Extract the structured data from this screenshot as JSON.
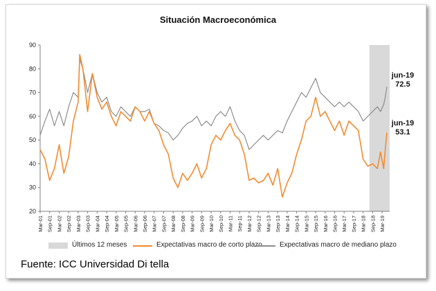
{
  "chart_data": {
    "type": "line",
    "title": "Situación Macroeconómica",
    "ylim": [
      20,
      90
    ],
    "yticks": [
      20,
      30,
      40,
      50,
      60,
      70,
      80,
      90
    ],
    "x_tick_labels": [
      "Mar-01",
      "Sep-01",
      "Mar-02",
      "Sep-02",
      "Mar-03",
      "Sep-03",
      "Mar-04",
      "Sep-04",
      "Mar-05",
      "Sep-05",
      "Mar-06",
      "Sep-06",
      "Mar-07",
      "Sep-07",
      "Mar-08",
      "Sep-08",
      "Mar-09",
      "Sep-09",
      "Mar-10",
      "Sep-10",
      "Mar-11",
      "Sep-11",
      "Mar-12",
      "Sep-12",
      "Mar-13",
      "Sep-13",
      "Mar-14",
      "Sep-14",
      "Mar-15",
      "Sep-15",
      "Mar-16",
      "Sep-16",
      "Mar-17",
      "Sep-17",
      "Mar-18",
      "Sep-18",
      "Mar-19"
    ],
    "shaded_region": {
      "label": "Últimos 12 meses",
      "from": "Jul-18",
      "to": "Jun-19",
      "color": "#d9d9d9"
    },
    "series": [
      {
        "name": "Expectativas macro de corto plazo",
        "color": "#f28b30",
        "points": [
          [
            "Mar-01",
            46
          ],
          [
            "Jun-01",
            42
          ],
          [
            "Sep-01",
            33
          ],
          [
            "Dec-01",
            38
          ],
          [
            "Mar-02",
            48
          ],
          [
            "Jun-02",
            36
          ],
          [
            "Sep-02",
            43
          ],
          [
            "Dec-02",
            58
          ],
          [
            "Mar-03",
            66
          ],
          [
            "Apr-03",
            86
          ],
          [
            "Jun-03",
            80
          ],
          [
            "Sep-03",
            62
          ],
          [
            "Dec-03",
            78
          ],
          [
            "Mar-04",
            68
          ],
          [
            "Jun-04",
            63
          ],
          [
            "Sep-04",
            66
          ],
          [
            "Dec-04",
            60
          ],
          [
            "Mar-05",
            56
          ],
          [
            "Jun-05",
            62
          ],
          [
            "Sep-05",
            60
          ],
          [
            "Dec-05",
            58
          ],
          [
            "Mar-06",
            64
          ],
          [
            "Jun-06",
            62
          ],
          [
            "Sep-06",
            58
          ],
          [
            "Dec-06",
            62
          ],
          [
            "Mar-07",
            57
          ],
          [
            "Jun-07",
            54
          ],
          [
            "Sep-07",
            48
          ],
          [
            "Dec-07",
            44
          ],
          [
            "Mar-08",
            34
          ],
          [
            "Jun-08",
            30
          ],
          [
            "Sep-08",
            36
          ],
          [
            "Dec-08",
            33
          ],
          [
            "Mar-09",
            36
          ],
          [
            "Jun-09",
            40
          ],
          [
            "Sep-09",
            34
          ],
          [
            "Dec-09",
            38
          ],
          [
            "Mar-10",
            48
          ],
          [
            "Jun-10",
            52
          ],
          [
            "Sep-10",
            50
          ],
          [
            "Dec-10",
            54
          ],
          [
            "Mar-11",
            57
          ],
          [
            "Jun-11",
            52
          ],
          [
            "Sep-11",
            50
          ],
          [
            "Dec-11",
            44
          ],
          [
            "Mar-12",
            33
          ],
          [
            "Jun-12",
            34
          ],
          [
            "Sep-12",
            32
          ],
          [
            "Dec-12",
            33
          ],
          [
            "Mar-13",
            36
          ],
          [
            "Jun-13",
            31
          ],
          [
            "Sep-13",
            38
          ],
          [
            "Dec-13",
            26
          ],
          [
            "Mar-14",
            32
          ],
          [
            "Jun-14",
            36
          ],
          [
            "Sep-14",
            44
          ],
          [
            "Dec-14",
            50
          ],
          [
            "Mar-15",
            58
          ],
          [
            "Jun-15",
            60
          ],
          [
            "Sep-15",
            68
          ],
          [
            "Dec-15",
            60
          ],
          [
            "Mar-16",
            62
          ],
          [
            "Jun-16",
            58
          ],
          [
            "Sep-16",
            54
          ],
          [
            "Dec-16",
            58
          ],
          [
            "Mar-17",
            52
          ],
          [
            "Jun-17",
            58
          ],
          [
            "Sep-17",
            56
          ],
          [
            "Dec-17",
            54
          ],
          [
            "Mar-18",
            42
          ],
          [
            "Jun-18",
            39
          ],
          [
            "Sep-18",
            40
          ],
          [
            "Dec-18",
            38
          ],
          [
            "Feb-19",
            45
          ],
          [
            "Apr-19",
            38
          ],
          [
            "May-19",
            46
          ],
          [
            "Jun-19",
            53.1
          ]
        ]
      },
      {
        "name": "Expectativas macro de mediano plazo",
        "color": "#8c8c8c",
        "points": [
          [
            "Mar-01",
            52
          ],
          [
            "Jun-01",
            58
          ],
          [
            "Sep-01",
            63
          ],
          [
            "Dec-01",
            56
          ],
          [
            "Mar-02",
            62
          ],
          [
            "Jun-02",
            56
          ],
          [
            "Sep-02",
            64
          ],
          [
            "Dec-02",
            70
          ],
          [
            "Mar-03",
            68
          ],
          [
            "Apr-03",
            84
          ],
          [
            "Jun-03",
            80
          ],
          [
            "Sep-03",
            70
          ],
          [
            "Dec-03",
            78
          ],
          [
            "Mar-04",
            70
          ],
          [
            "Jun-04",
            66
          ],
          [
            "Sep-04",
            68
          ],
          [
            "Dec-04",
            62
          ],
          [
            "Mar-05",
            60
          ],
          [
            "Jun-05",
            64
          ],
          [
            "Sep-05",
            62
          ],
          [
            "Dec-05",
            60
          ],
          [
            "Mar-06",
            64
          ],
          [
            "Jun-06",
            62
          ],
          [
            "Sep-06",
            62
          ],
          [
            "Dec-06",
            63
          ],
          [
            "Mar-07",
            57
          ],
          [
            "Jun-07",
            56
          ],
          [
            "Sep-07",
            54
          ],
          [
            "Dec-07",
            53
          ],
          [
            "Mar-08",
            50
          ],
          [
            "Jun-08",
            52
          ],
          [
            "Sep-08",
            55
          ],
          [
            "Dec-08",
            57
          ],
          [
            "Mar-09",
            58
          ],
          [
            "Jun-09",
            60
          ],
          [
            "Sep-09",
            56
          ],
          [
            "Dec-09",
            58
          ],
          [
            "Mar-10",
            56
          ],
          [
            "Jun-10",
            60
          ],
          [
            "Sep-10",
            62
          ],
          [
            "Dec-10",
            60
          ],
          [
            "Mar-11",
            64
          ],
          [
            "Jun-11",
            58
          ],
          [
            "Sep-11",
            54
          ],
          [
            "Dec-11",
            52
          ],
          [
            "Mar-12",
            46
          ],
          [
            "Jun-12",
            48
          ],
          [
            "Sep-12",
            50
          ],
          [
            "Dec-12",
            52
          ],
          [
            "Mar-13",
            50
          ],
          [
            "Jun-13",
            52
          ],
          [
            "Sep-13",
            54
          ],
          [
            "Dec-13",
            53
          ],
          [
            "Mar-14",
            58
          ],
          [
            "Jun-14",
            62
          ],
          [
            "Sep-14",
            66
          ],
          [
            "Dec-14",
            70
          ],
          [
            "Mar-15",
            68
          ],
          [
            "Jun-15",
            72
          ],
          [
            "Sep-15",
            76
          ],
          [
            "Dec-15",
            70
          ],
          [
            "Mar-16",
            68
          ],
          [
            "Jun-16",
            66
          ],
          [
            "Sep-16",
            64
          ],
          [
            "Dec-16",
            66
          ],
          [
            "Mar-17",
            64
          ],
          [
            "Jun-17",
            66
          ],
          [
            "Sep-17",
            64
          ],
          [
            "Dec-17",
            62
          ],
          [
            "Mar-18",
            58
          ],
          [
            "Jun-18",
            60
          ],
          [
            "Sep-18",
            62
          ],
          [
            "Dec-18",
            64
          ],
          [
            "Feb-19",
            62
          ],
          [
            "Apr-19",
            65
          ],
          [
            "May-19",
            68
          ],
          [
            "Jun-19",
            72.5
          ]
        ]
      }
    ],
    "annotations": [
      {
        "label": "jun-19",
        "value": "72.5"
      },
      {
        "label": "jun-19",
        "value": "53.1"
      }
    ],
    "legend_position": "bottom"
  },
  "legend": {
    "shade_label": "Últimos 12 meses",
    "short_label": "Expectativas macro de corto plazo",
    "medium_label": "Expectativas macro de mediano plazo"
  },
  "source": "Fuente: ICC Universidad Di tella"
}
